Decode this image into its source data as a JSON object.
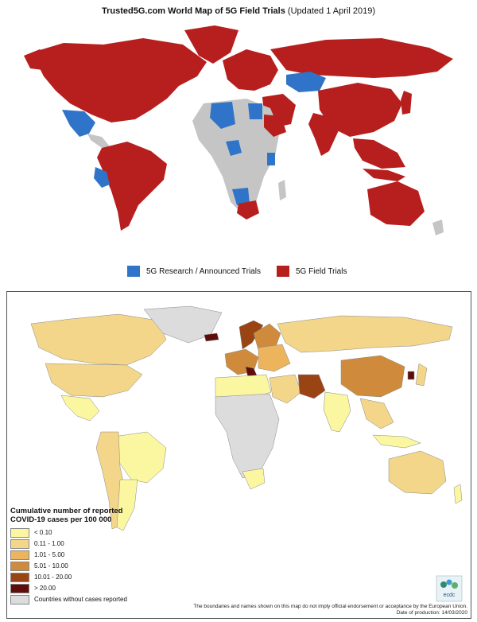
{
  "top": {
    "title_brand": "Trusted5G.com World Map of 5G Field Trials",
    "title_updated": "(Updated 1 April 2019)",
    "colors": {
      "field": "#b71f1f",
      "research": "#2f74c9",
      "none": "#c5c5c5"
    },
    "legend": [
      {
        "label": "5G Research / Announced Trials",
        "color": "#2f74c9"
      },
      {
        "label": "5G Field Trials",
        "color": "#b71f1f"
      }
    ]
  },
  "bottom": {
    "legend_title_line1": "Cumulative number of reported",
    "legend_title_line2": "COVID-19 cases per 100 000",
    "legend": [
      {
        "label": "< 0.10",
        "color": "#fbf7a0"
      },
      {
        "label": "0.11 - 1.00",
        "color": "#f3d68a"
      },
      {
        "label": "1.01 - 5.00",
        "color": "#ecb45c"
      },
      {
        "label": "5.01 - 10.00",
        "color": "#cf8b3b"
      },
      {
        "label": "10.01 - 20.00",
        "color": "#9a4414"
      },
      {
        "label": "> 20.00",
        "color": "#5e0d0b"
      },
      {
        "label": "Countries without cases reported",
        "color": "#dcdcdc"
      }
    ],
    "disclaimer_line1": "The boundaries and names shown on this map do not imply official endorsement or acceptance by the European Union.",
    "disclaimer_line2": "Date of production: 14/03/2020",
    "logo_text": "ecdc"
  }
}
